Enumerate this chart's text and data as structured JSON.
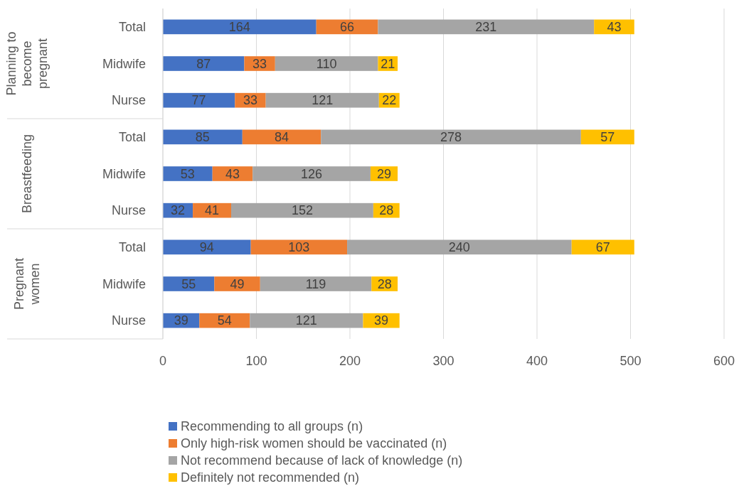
{
  "chart_data": {
    "type": "bar",
    "orientation": "horizontal",
    "stacked": true,
    "data_labels": true,
    "grid": "x",
    "legend": "bottom",
    "categories": [
      "Total",
      "Midwife",
      "Nurse",
      "Total",
      "Midwife",
      "Nurse",
      "Total",
      "Midwife",
      "Nurse"
    ],
    "annotations": [
      "Planning to become pregnant",
      "Breastfeeding",
      "Pregnant women"
    ],
    "xlim": [
      0,
      600
    ],
    "xticks": [
      0,
      100,
      200,
      300,
      400,
      500,
      600
    ],
    "series": [
      {
        "name": "Recommending to all groups (n)",
        "color": "#4472c4",
        "values": [
          164,
          87,
          77,
          85,
          53,
          32,
          94,
          55,
          39
        ]
      },
      {
        "name": "Only high-risk women should be vaccinated (n)",
        "color": "#ed7d31",
        "values": [
          66,
          33,
          33,
          84,
          43,
          41,
          103,
          49,
          54
        ]
      },
      {
        "name": "Not recommend because of lack of knowledge (n)",
        "color": "#a5a5a5",
        "values": [
          231,
          110,
          121,
          278,
          126,
          152,
          240,
          119,
          121
        ]
      },
      {
        "name": "Definitely not recommended (n)",
        "color": "#ffc000",
        "values": [
          43,
          21,
          22,
          57,
          29,
          28,
          67,
          28,
          39
        ]
      }
    ]
  }
}
